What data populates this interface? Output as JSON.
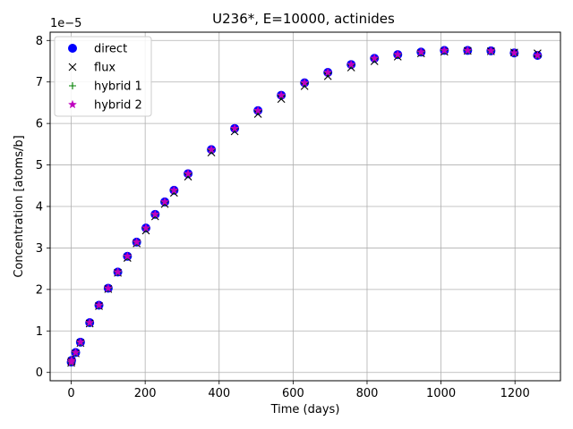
{
  "chart_data": {
    "type": "scatter",
    "title": "U236*, E=10000, actinides",
    "xlabel": "Time (days)",
    "ylabel": "Concentration [atoms/b]",
    "y_offset_label": "1e−5",
    "y_scale_exponent": -5,
    "xlim": [
      -57,
      1323
    ],
    "ylim": [
      -0.2,
      8.2
    ],
    "xticks": [
      0,
      200,
      400,
      600,
      800,
      1000,
      1200
    ],
    "yticks": [
      0,
      1,
      2,
      3,
      4,
      5,
      6,
      7,
      8
    ],
    "xtick_labels": [
      "0",
      "200",
      "400",
      "600",
      "800",
      "1000",
      "1200"
    ],
    "ytick_labels": [
      "0",
      "1",
      "2",
      "3",
      "4",
      "5",
      "6",
      "7",
      "8"
    ],
    "grid": true,
    "legend_position": "top-left",
    "x": [
      0,
      1,
      12,
      25,
      50,
      75,
      100,
      126,
      152,
      177,
      202,
      227,
      253,
      278,
      316,
      379,
      442,
      505,
      568,
      631,
      694,
      757,
      820,
      883,
      946,
      1009,
      1072,
      1135,
      1198,
      1261
    ],
    "series": [
      {
        "name": "direct",
        "marker": "circle",
        "color": "#0000ff",
        "values": [
          0.25,
          0.29,
          0.48,
          0.73,
          1.2,
          1.62,
          2.03,
          2.42,
          2.8,
          3.14,
          3.48,
          3.81,
          4.11,
          4.39,
          4.79,
          5.37,
          5.88,
          6.31,
          6.68,
          6.98,
          7.23,
          7.42,
          7.57,
          7.66,
          7.72,
          7.76,
          7.76,
          7.75,
          7.7,
          7.64
        ]
      },
      {
        "name": "flux",
        "marker": "x",
        "color": "#000000",
        "values": [
          0.23,
          0.27,
          0.46,
          0.71,
          1.18,
          1.6,
          2.01,
          2.4,
          2.76,
          3.11,
          3.42,
          3.76,
          4.06,
          4.33,
          4.72,
          5.3,
          5.81,
          6.23,
          6.59,
          6.9,
          7.14,
          7.35,
          7.5,
          7.61,
          7.69,
          7.73,
          7.75,
          7.74,
          7.71,
          7.69
        ]
      },
      {
        "name": "hybrid 1",
        "marker": "plus",
        "color": "#008000",
        "values": [
          0.25,
          0.29,
          0.48,
          0.73,
          1.2,
          1.62,
          2.03,
          2.42,
          2.8,
          3.14,
          3.48,
          3.81,
          4.11,
          4.39,
          4.79,
          5.37,
          5.88,
          6.31,
          6.68,
          6.98,
          7.23,
          7.42,
          7.57,
          7.66,
          7.72,
          7.76,
          7.76,
          7.75,
          7.7,
          7.64
        ]
      },
      {
        "name": "hybrid 2",
        "marker": "star",
        "color": "#bf00bf",
        "values": [
          0.25,
          0.29,
          0.48,
          0.73,
          1.2,
          1.62,
          2.03,
          2.42,
          2.8,
          3.14,
          3.48,
          3.81,
          4.11,
          4.39,
          4.79,
          5.37,
          5.88,
          6.31,
          6.68,
          6.98,
          7.23,
          7.42,
          7.57,
          7.66,
          7.72,
          7.76,
          7.76,
          7.75,
          7.7,
          7.64
        ]
      }
    ]
  }
}
